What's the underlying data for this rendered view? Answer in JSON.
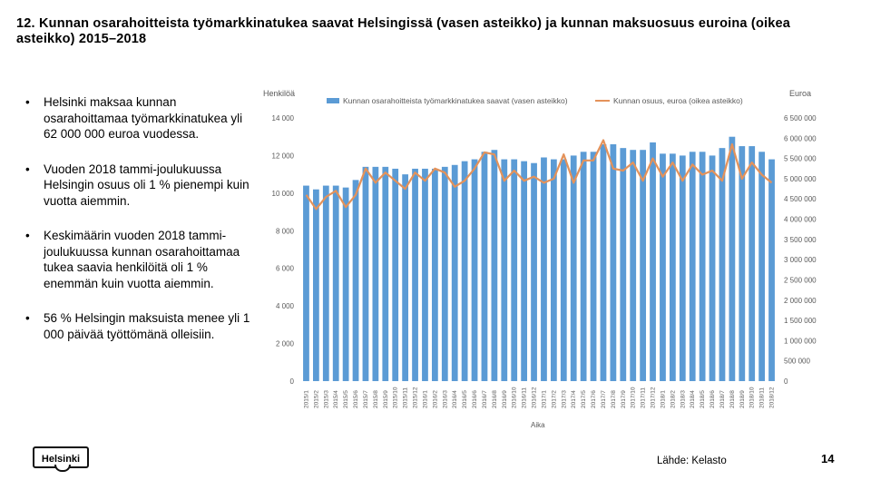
{
  "slide": {
    "title": "12. Kunnan osarahoitteista työmarkkinatukea saavat Helsingissä (vasen asteikko) ja kunnan maksuosuus euroina (oikea asteikko) 2015–2018",
    "bullets": [
      "Helsinki maksaa kunnan osarahoittamaa työmarkkinatukea yli 62 000 000 euroa vuodessa.",
      "Vuoden 2018 tammi-joulukuussa Helsingin osuus oli 1 % pienempi kuin vuotta aiemmin.",
      "Keskimäärin vuoden 2018 tammi-joulukuussa kunnan osarahoittamaa tukea saavia henkilöitä oli 1 % enemmän kuin vuotta aiemmin.",
      "56 % Helsingin maksuista menee yli 1 000 päivää työttömänä olleisiin."
    ],
    "logo_text": "Helsinki",
    "source": "Lähde: Kelasto",
    "page_number": "14"
  },
  "chart_data": {
    "type": "bar",
    "title": "",
    "bar_color": "#5b9bd5",
    "line_color": "#e4925a",
    "ylabel": "Henkilöä",
    "y2label": "Euroa",
    "xlabel": "Aika",
    "ylim": [
      0,
      14000
    ],
    "y2lim": [
      0,
      6500000
    ],
    "yticks": [
      0,
      2000,
      4000,
      6000,
      8000,
      10000,
      12000,
      14000
    ],
    "yticklabels": [
      "0",
      "2 000",
      "4 000",
      "6 000",
      "8 000",
      "10 000",
      "12 000",
      "14 000"
    ],
    "y2ticks": [
      0,
      500000,
      1000000,
      1500000,
      2000000,
      2500000,
      3000000,
      3500000,
      4000000,
      4500000,
      5000000,
      5500000,
      6000000,
      6500000
    ],
    "y2ticklabels": [
      "0",
      "500 000",
      "1 000 000",
      "1 500 000",
      "2 000 000",
      "2 500 000",
      "3 000 000",
      "3 500 000",
      "4 000 000",
      "4 500 000",
      "5 000 000",
      "5 500 000",
      "6 000 000",
      "6 500 000"
    ],
    "categories": [
      "2015/1",
      "2015/2",
      "2015/3",
      "2015/4",
      "2015/5",
      "2015/6",
      "2015/7",
      "2015/8",
      "2015/9",
      "2015/10",
      "2015/11",
      "2015/12",
      "2016/1",
      "2016/2",
      "2016/3",
      "2016/4",
      "2016/5",
      "2016/6",
      "2016/7",
      "2016/8",
      "2016/9",
      "2016/10",
      "2016/11",
      "2016/12",
      "2017/1",
      "2017/2",
      "2017/3",
      "2017/4",
      "2017/5",
      "2017/6",
      "2017/7",
      "2017/8",
      "2017/9",
      "2017/10",
      "2017/11",
      "2017/12",
      "2018/1",
      "2018/2",
      "2018/3",
      "2018/4",
      "2018/5",
      "2018/6",
      "2018/7",
      "2018/8",
      "2018/9",
      "2018/10",
      "2018/11",
      "2018/12"
    ],
    "series": [
      {
        "name": "Kunnan osarahoitteista työmarkkinatukea saavat (vasen asteikko)",
        "type": "bar",
        "axis": "left",
        "values": [
          10400,
          10200,
          10400,
          10400,
          10300,
          10700,
          11400,
          11400,
          11400,
          11300,
          11000,
          11300,
          11300,
          11300,
          11400,
          11500,
          11700,
          11800,
          12200,
          12300,
          11800,
          11800,
          11700,
          11600,
          11900,
          11800,
          11800,
          12000,
          12200,
          12200,
          12600,
          12600,
          12400,
          12300,
          12300,
          12700,
          12100,
          12100,
          12000,
          12200,
          12200,
          12000,
          12400,
          13000,
          12500,
          12500,
          12200,
          11800
        ]
      },
      {
        "name": "Kunnan osuus, euroa (oikea asteikko)",
        "type": "line",
        "axis": "right",
        "values": [
          4600000,
          4250000,
          4550000,
          4700000,
          4300000,
          4600000,
          5250000,
          4900000,
          5150000,
          4950000,
          4750000,
          5150000,
          4950000,
          5250000,
          5150000,
          4800000,
          4950000,
          5250000,
          5650000,
          5600000,
          4950000,
          5200000,
          4950000,
          5050000,
          4900000,
          5000000,
          5600000,
          4900000,
          5450000,
          5450000,
          5950000,
          5250000,
          5200000,
          5400000,
          4950000,
          5500000,
          5050000,
          5400000,
          4950000,
          5350000,
          5100000,
          5200000,
          4950000,
          5850000,
          5000000,
          5400000,
          5100000,
          4900000
        ]
      }
    ],
    "legend_position": "top"
  }
}
